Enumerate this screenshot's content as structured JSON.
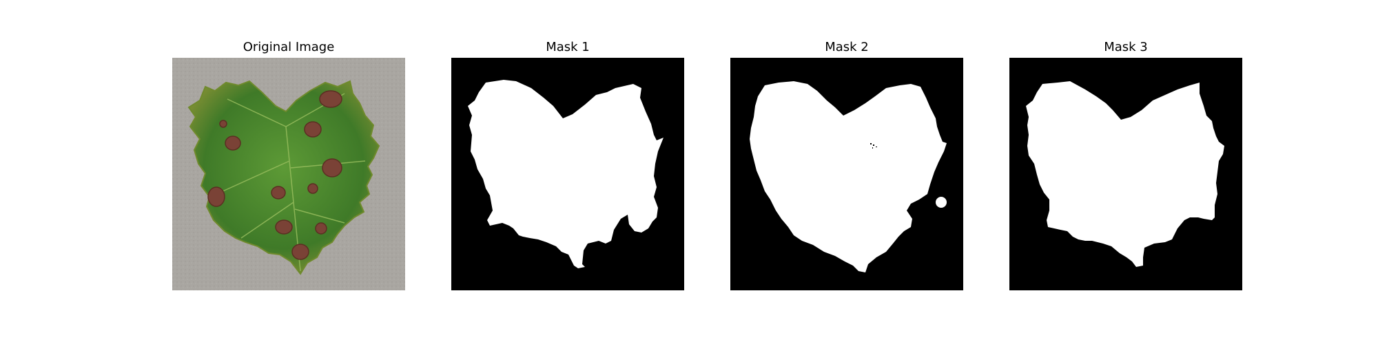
{
  "panels": [
    {
      "title": "Original Image",
      "kind": "photo",
      "subject": "leaf-photo"
    },
    {
      "title": "Mask 1",
      "kind": "mask"
    },
    {
      "title": "Mask 2",
      "kind": "mask"
    },
    {
      "title": "Mask 3",
      "kind": "mask"
    }
  ],
  "colors": {
    "background": "#ffffff",
    "title_text": "#000000",
    "mask_background": "#000000",
    "mask_foreground": "#ffffff",
    "concrete": "#a9a6a1",
    "leaf_green": "#4f8a2e",
    "leaf_dark": "#2f6320",
    "leaf_yellow": "#8e9a3a",
    "lesion_brown": "#7a4236"
  }
}
